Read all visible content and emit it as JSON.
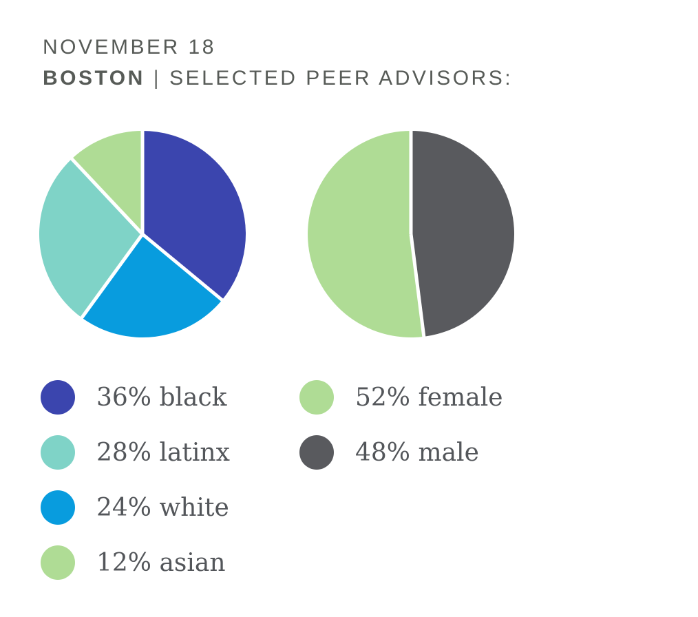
{
  "header": {
    "date": "NOVEMBER 18",
    "city": "BOSTON",
    "separator": "|",
    "subtitle": "SELECTED PEER ADVISORS:"
  },
  "colors": {
    "black_slice": "#3b45ae",
    "white_slice": "#089cde",
    "latinx_slice": "#7fd3c7",
    "asian_female_slice": "#afdc95",
    "male_slice": "#595a5e",
    "slice_gap": "#ffffff",
    "header_text": "#575b57",
    "legend_text": "#53565a"
  },
  "chart_data": [
    {
      "type": "pie",
      "name": "race",
      "start_angle_deg": 0,
      "direction": "clockwise",
      "slices": [
        {
          "label": "black",
          "value": 36,
          "color": "#3b45ae"
        },
        {
          "label": "white",
          "value": 24,
          "color": "#089cde"
        },
        {
          "label": "latinx",
          "value": 28,
          "color": "#7fd3c7"
        },
        {
          "label": "asian",
          "value": 12,
          "color": "#afdc95"
        }
      ],
      "legend": [
        {
          "label": "black",
          "text": "36% black",
          "color": "#3b45ae"
        },
        {
          "label": "latinx",
          "text": "28% latinx",
          "color": "#7fd3c7"
        },
        {
          "label": "white",
          "text": "24% white",
          "color": "#089cde"
        },
        {
          "label": "asian",
          "text": "12% asian",
          "color": "#afdc95"
        }
      ],
      "legend_position": "below-left"
    },
    {
      "type": "pie",
      "name": "gender",
      "start_angle_deg": 0,
      "direction": "clockwise",
      "slices": [
        {
          "label": "male",
          "value": 48,
          "color": "#595a5e"
        },
        {
          "label": "female",
          "value": 52,
          "color": "#afdc95"
        }
      ],
      "legend": [
        {
          "label": "female",
          "text": "52% female",
          "color": "#afdc95"
        },
        {
          "label": "male",
          "text": "48% male",
          "color": "#595a5e"
        }
      ],
      "legend_position": "below-left"
    }
  ]
}
